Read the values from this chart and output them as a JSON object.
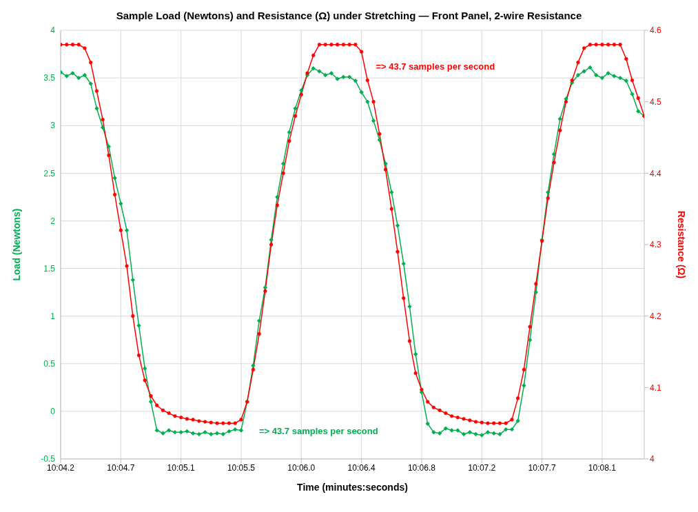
{
  "chart_data": {
    "type": "line",
    "title": "Sample Load (Newtons) and Resistance (Ω) under Stretching — Front Panel, 2-wire Resistance",
    "xlabel": "Time (minutes:seconds)",
    "ylabel": "Load (Newtons)",
    "y2label": "Resistance (Ω)",
    "categories": [
      "10:04.2",
      null,
      null,
      null,
      null,
      null,
      null,
      null,
      null,
      null,
      "10:04.7",
      null,
      null,
      null,
      null,
      null,
      null,
      null,
      null,
      null,
      "10:05.1",
      null,
      null,
      null,
      null,
      null,
      null,
      null,
      null,
      null,
      "10:05.5",
      null,
      null,
      null,
      null,
      null,
      null,
      null,
      null,
      null,
      "10:06.0",
      null,
      null,
      null,
      null,
      null,
      null,
      null,
      null,
      null,
      "10:06.4",
      null,
      null,
      null,
      null,
      null,
      null,
      null,
      null,
      null,
      "10:06.8",
      null,
      null,
      null,
      null,
      null,
      null,
      null,
      null,
      null,
      "10:07.2",
      null,
      null,
      null,
      null,
      null,
      null,
      null,
      null,
      null,
      "10:07.7",
      null,
      null,
      null,
      null,
      null,
      null,
      null,
      null,
      null,
      "10:08.1",
      null,
      null,
      null,
      null,
      null,
      null,
      null
    ],
    "ylim": [
      -0.5,
      4
    ],
    "yticks": [
      -0.5,
      0,
      0.5,
      1,
      1.5,
      2,
      2.5,
      3,
      3.5,
      4
    ],
    "y2lim": [
      4,
      4.6
    ],
    "y2ticks": [
      4,
      4.1,
      4.2,
      4.3,
      4.4,
      4.5,
      4.6
    ],
    "grid": true,
    "series": [
      {
        "marker": "diamond",
        "color": "#00b050",
        "values": [
          3.56,
          3.52,
          3.55,
          3.5,
          3.53,
          3.44,
          3.18,
          2.98,
          2.78,
          2.45,
          2.18,
          1.9,
          1.38,
          0.9,
          0.45,
          0.1,
          -0.2,
          -0.23,
          -0.2,
          -0.22,
          -0.22,
          -0.21,
          -0.23,
          -0.24,
          -0.22,
          -0.24,
          -0.23,
          -0.24,
          -0.21,
          -0.19,
          -0.2,
          0.1,
          0.48,
          0.95,
          1.3,
          1.8,
          2.25,
          2.6,
          2.93,
          3.18,
          3.37,
          3.53,
          3.6,
          3.57,
          3.53,
          3.55,
          3.49,
          3.51,
          3.51,
          3.47,
          3.35,
          3.25,
          3.05,
          2.85,
          2.6,
          2.3,
          1.95,
          1.55,
          1.1,
          0.6,
          0.2,
          -0.13,
          -0.22,
          -0.23,
          -0.18,
          -0.2,
          -0.2,
          -0.24,
          -0.22,
          -0.24,
          -0.25,
          -0.22,
          -0.23,
          -0.24,
          -0.19,
          -0.19,
          -0.1,
          0.27,
          0.75,
          1.25,
          1.8,
          2.3,
          2.7,
          3.07,
          3.28,
          3.45,
          3.53,
          3.57,
          3.61,
          3.53,
          3.5,
          3.55,
          3.52,
          3.5,
          3.47,
          3.33,
          3.15,
          3.1
        ]
      },
      {
        "marker": "circle",
        "color": "#ff0000",
        "axis": "y2",
        "values": [
          4.58,
          4.58,
          4.58,
          4.58,
          4.575,
          4.555,
          4.515,
          4.475,
          4.425,
          4.37,
          4.32,
          4.27,
          4.2,
          4.145,
          4.11,
          4.088,
          4.075,
          4.068,
          4.064,
          4.06,
          4.058,
          4.056,
          4.055,
          4.053,
          4.052,
          4.051,
          4.05,
          4.05,
          4.05,
          4.05,
          4.055,
          4.08,
          4.125,
          4.175,
          4.235,
          4.3,
          4.355,
          4.4,
          4.445,
          4.48,
          4.51,
          4.54,
          4.565,
          4.58,
          4.58,
          4.58,
          4.58,
          4.58,
          4.58,
          4.58,
          4.57,
          4.53,
          4.5,
          4.455,
          4.405,
          4.35,
          4.29,
          4.225,
          4.165,
          4.12,
          4.097,
          4.08,
          4.072,
          4.068,
          4.064,
          4.06,
          4.058,
          4.056,
          4.054,
          4.052,
          4.051,
          4.05,
          4.05,
          4.05,
          4.05,
          4.055,
          4.085,
          4.125,
          4.185,
          4.245,
          4.305,
          4.365,
          4.415,
          4.46,
          4.5,
          4.53,
          4.555,
          4.575,
          4.58,
          4.58,
          4.58,
          4.58,
          4.58,
          4.58,
          4.56,
          4.53,
          4.505,
          4.48
        ]
      }
    ],
    "annotations": [
      "=> 43.7 samples per second",
      "=> 43.7 samples per second"
    ]
  }
}
